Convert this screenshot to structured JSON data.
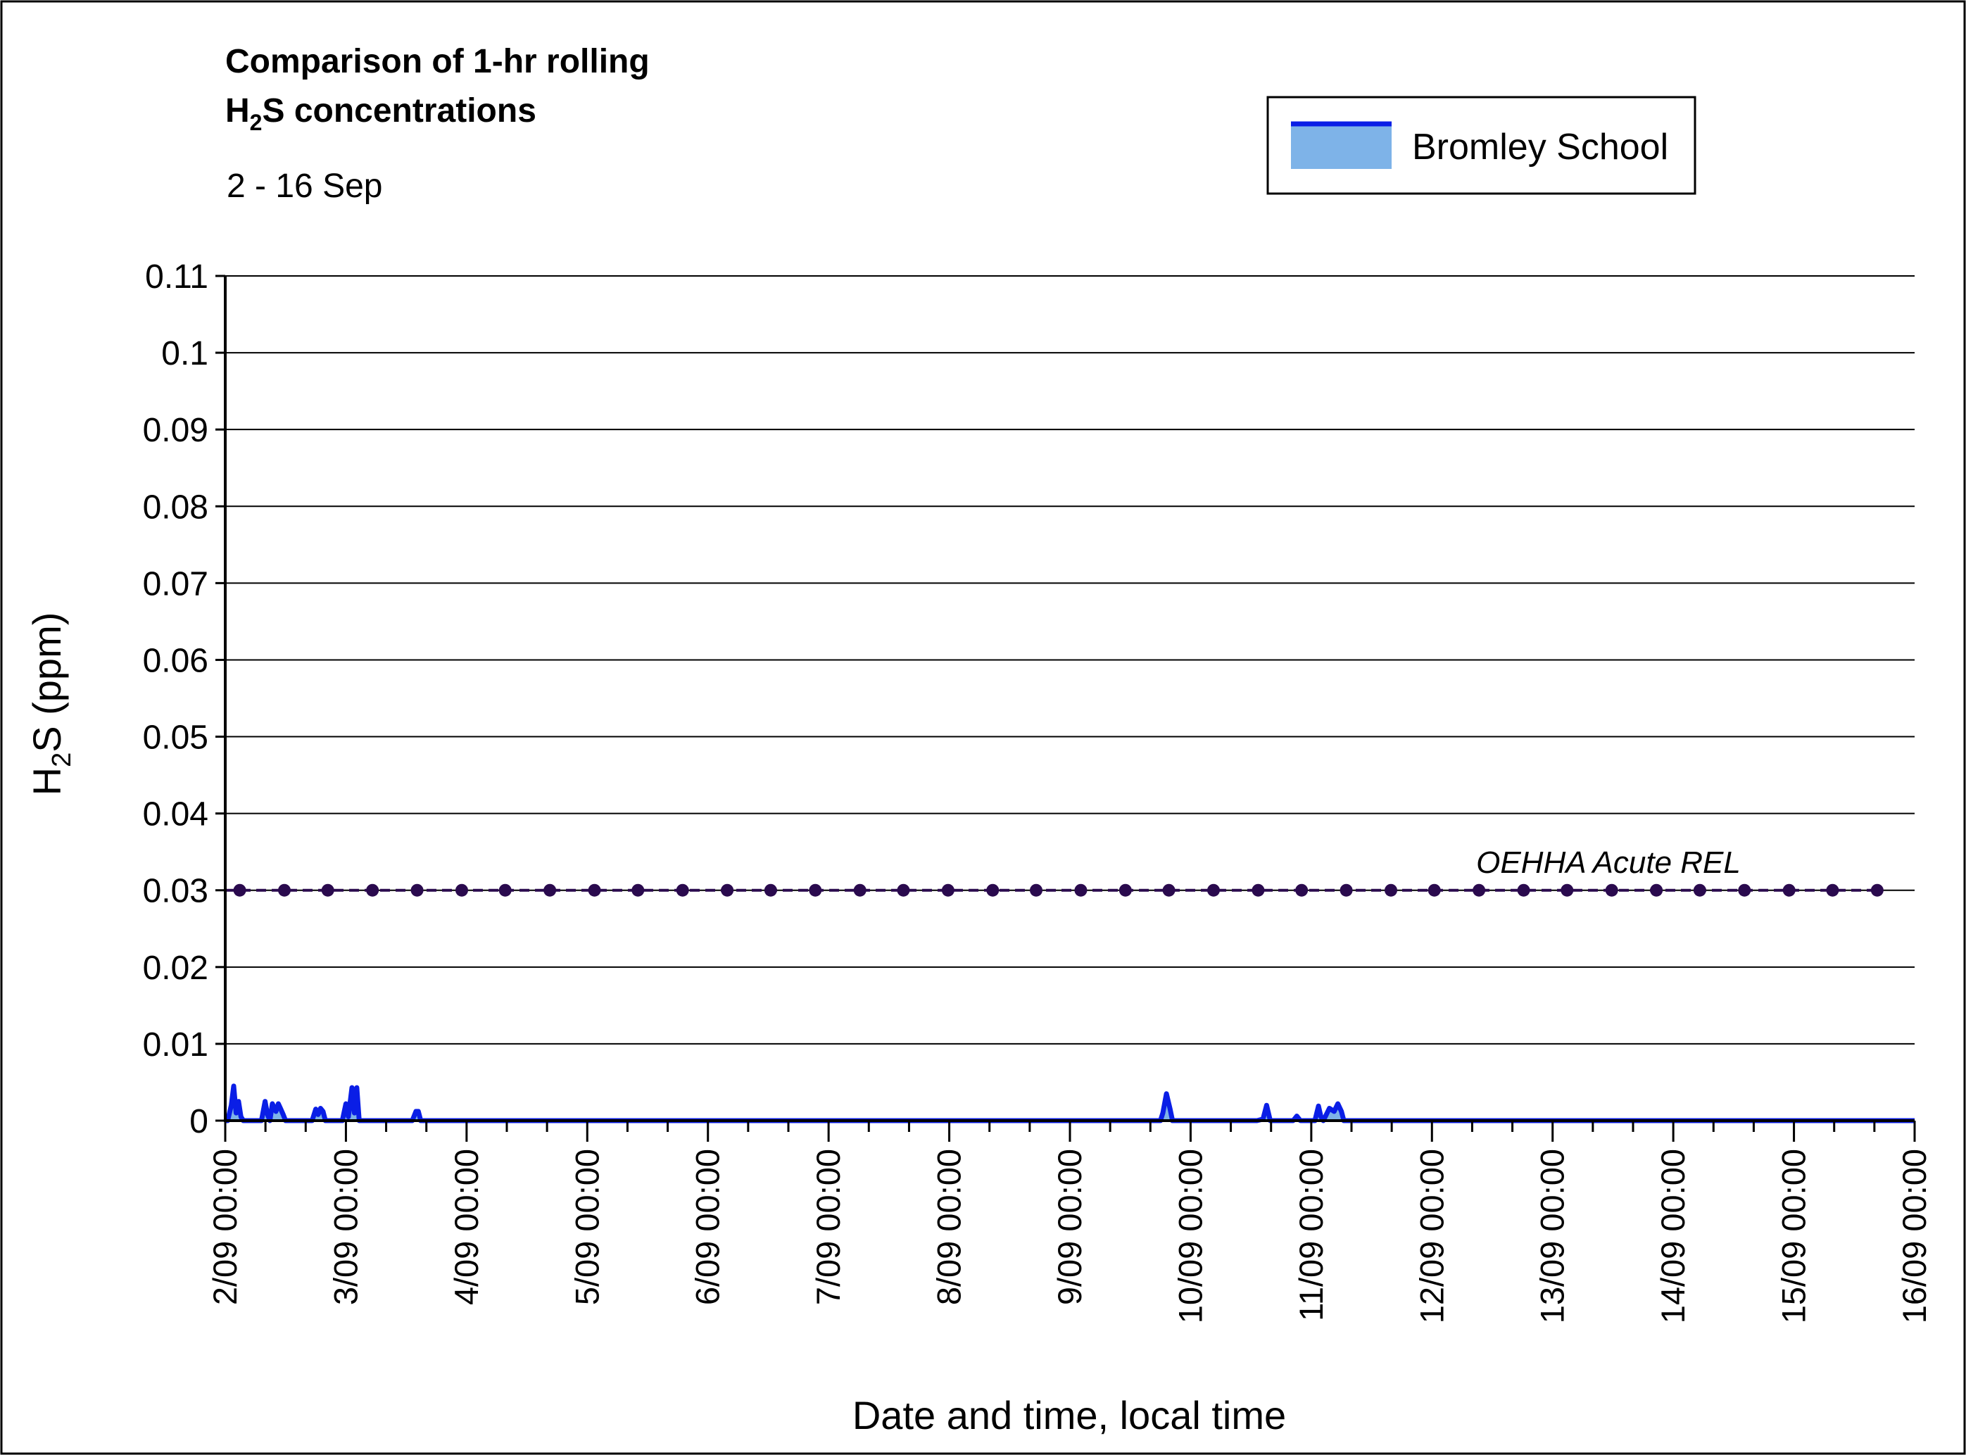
{
  "chart_data": {
    "type": "area",
    "title_line1": "Comparison of 1-hr rolling",
    "title_line2_main": "H",
    "title_line2_sub": "2",
    "title_line2_rest": "S concentrations",
    "subtitle": "2 - 16 Sep",
    "ylabel_main": "H",
    "ylabel_sub": "2",
    "ylabel_rest": "S (ppm)",
    "xlabel": "Date and time, local time",
    "ylim": [
      0,
      0.11
    ],
    "yticks": [
      "0",
      "0.01",
      "0.02",
      "0.03",
      "0.04",
      "0.05",
      "0.06",
      "0.07",
      "0.08",
      "0.09",
      "0.1",
      "0.11"
    ],
    "xlim_days": [
      2,
      16
    ],
    "xticks": [
      "2/09 00:00",
      "3/09 00:00",
      "4/09 00:00",
      "5/09 00:00",
      "6/09 00:00",
      "7/09 00:00",
      "8/09 00:00",
      "9/09 00:00",
      "10/09 00:00",
      "11/09 00:00",
      "12/09 00:00",
      "13/09 00:00",
      "14/09 00:00",
      "15/09 00:00",
      "16/09 00:00"
    ],
    "grid": true,
    "legend_position": "top-right",
    "series": [
      {
        "name": "Bromley School",
        "line_color": "#0a1ee6",
        "fill_color": "#7eb3e8",
        "x_days": [
          2.0,
          2.02,
          2.05,
          2.07,
          2.09,
          2.11,
          2.13,
          2.15,
          2.17,
          2.3,
          2.33,
          2.35,
          2.37,
          2.39,
          2.42,
          2.44,
          2.46,
          2.48,
          2.5,
          2.52,
          2.72,
          2.75,
          2.77,
          2.79,
          2.81,
          2.83,
          2.85,
          2.97,
          3.0,
          3.02,
          3.05,
          3.07,
          3.09,
          3.11,
          3.13,
          3.55,
          3.58,
          3.6,
          3.62,
          3.65,
          9.72,
          9.75,
          9.77,
          9.8,
          9.83,
          9.85,
          9.87,
          10.55,
          10.6,
          10.63,
          10.66,
          10.7,
          10.85,
          10.88,
          10.91,
          11.03,
          11.06,
          11.08,
          11.1,
          11.15,
          11.19,
          11.22,
          11.25,
          11.27,
          11.3,
          16.0
        ],
        "values": [
          0,
          0,
          0.002,
          0.0045,
          0.001,
          0.0025,
          0.0005,
          0,
          0,
          0,
          0.0025,
          0.0008,
          0,
          0.0022,
          0.0012,
          0.0022,
          0.0015,
          0.0008,
          0,
          0,
          0,
          0.0015,
          0.0008,
          0.0016,
          0.0012,
          0,
          0,
          0,
          0.0022,
          0.0005,
          0.0043,
          0.001,
          0.0043,
          0,
          0,
          0,
          0.0012,
          0.0012,
          0,
          0,
          0,
          0,
          0.001,
          0.0035,
          0.0015,
          0,
          0,
          0,
          0.0002,
          0.002,
          0,
          0,
          0,
          0.0006,
          0,
          0,
          0.0019,
          0.0005,
          0,
          0.0016,
          0.0012,
          0.0022,
          0.0012,
          0,
          0,
          0
        ]
      }
    ],
    "reference_line": {
      "label": "OEHHA Acute REL",
      "value": 0.03,
      "color": "#2a0a4e",
      "marker_x_days": [
        2.12,
        2.49,
        2.85,
        3.22,
        3.59,
        3.96,
        4.32,
        4.69,
        5.06,
        5.42,
        5.79,
        6.16,
        6.52,
        6.89,
        7.26,
        7.62,
        7.99,
        8.36,
        8.72,
        9.09,
        9.46,
        9.82,
        10.19,
        10.56,
        10.92,
        11.29,
        11.66,
        12.02,
        12.39,
        12.76,
        13.12,
        13.49,
        13.86,
        14.22,
        14.59,
        14.96,
        15.32,
        15.69
      ]
    }
  }
}
